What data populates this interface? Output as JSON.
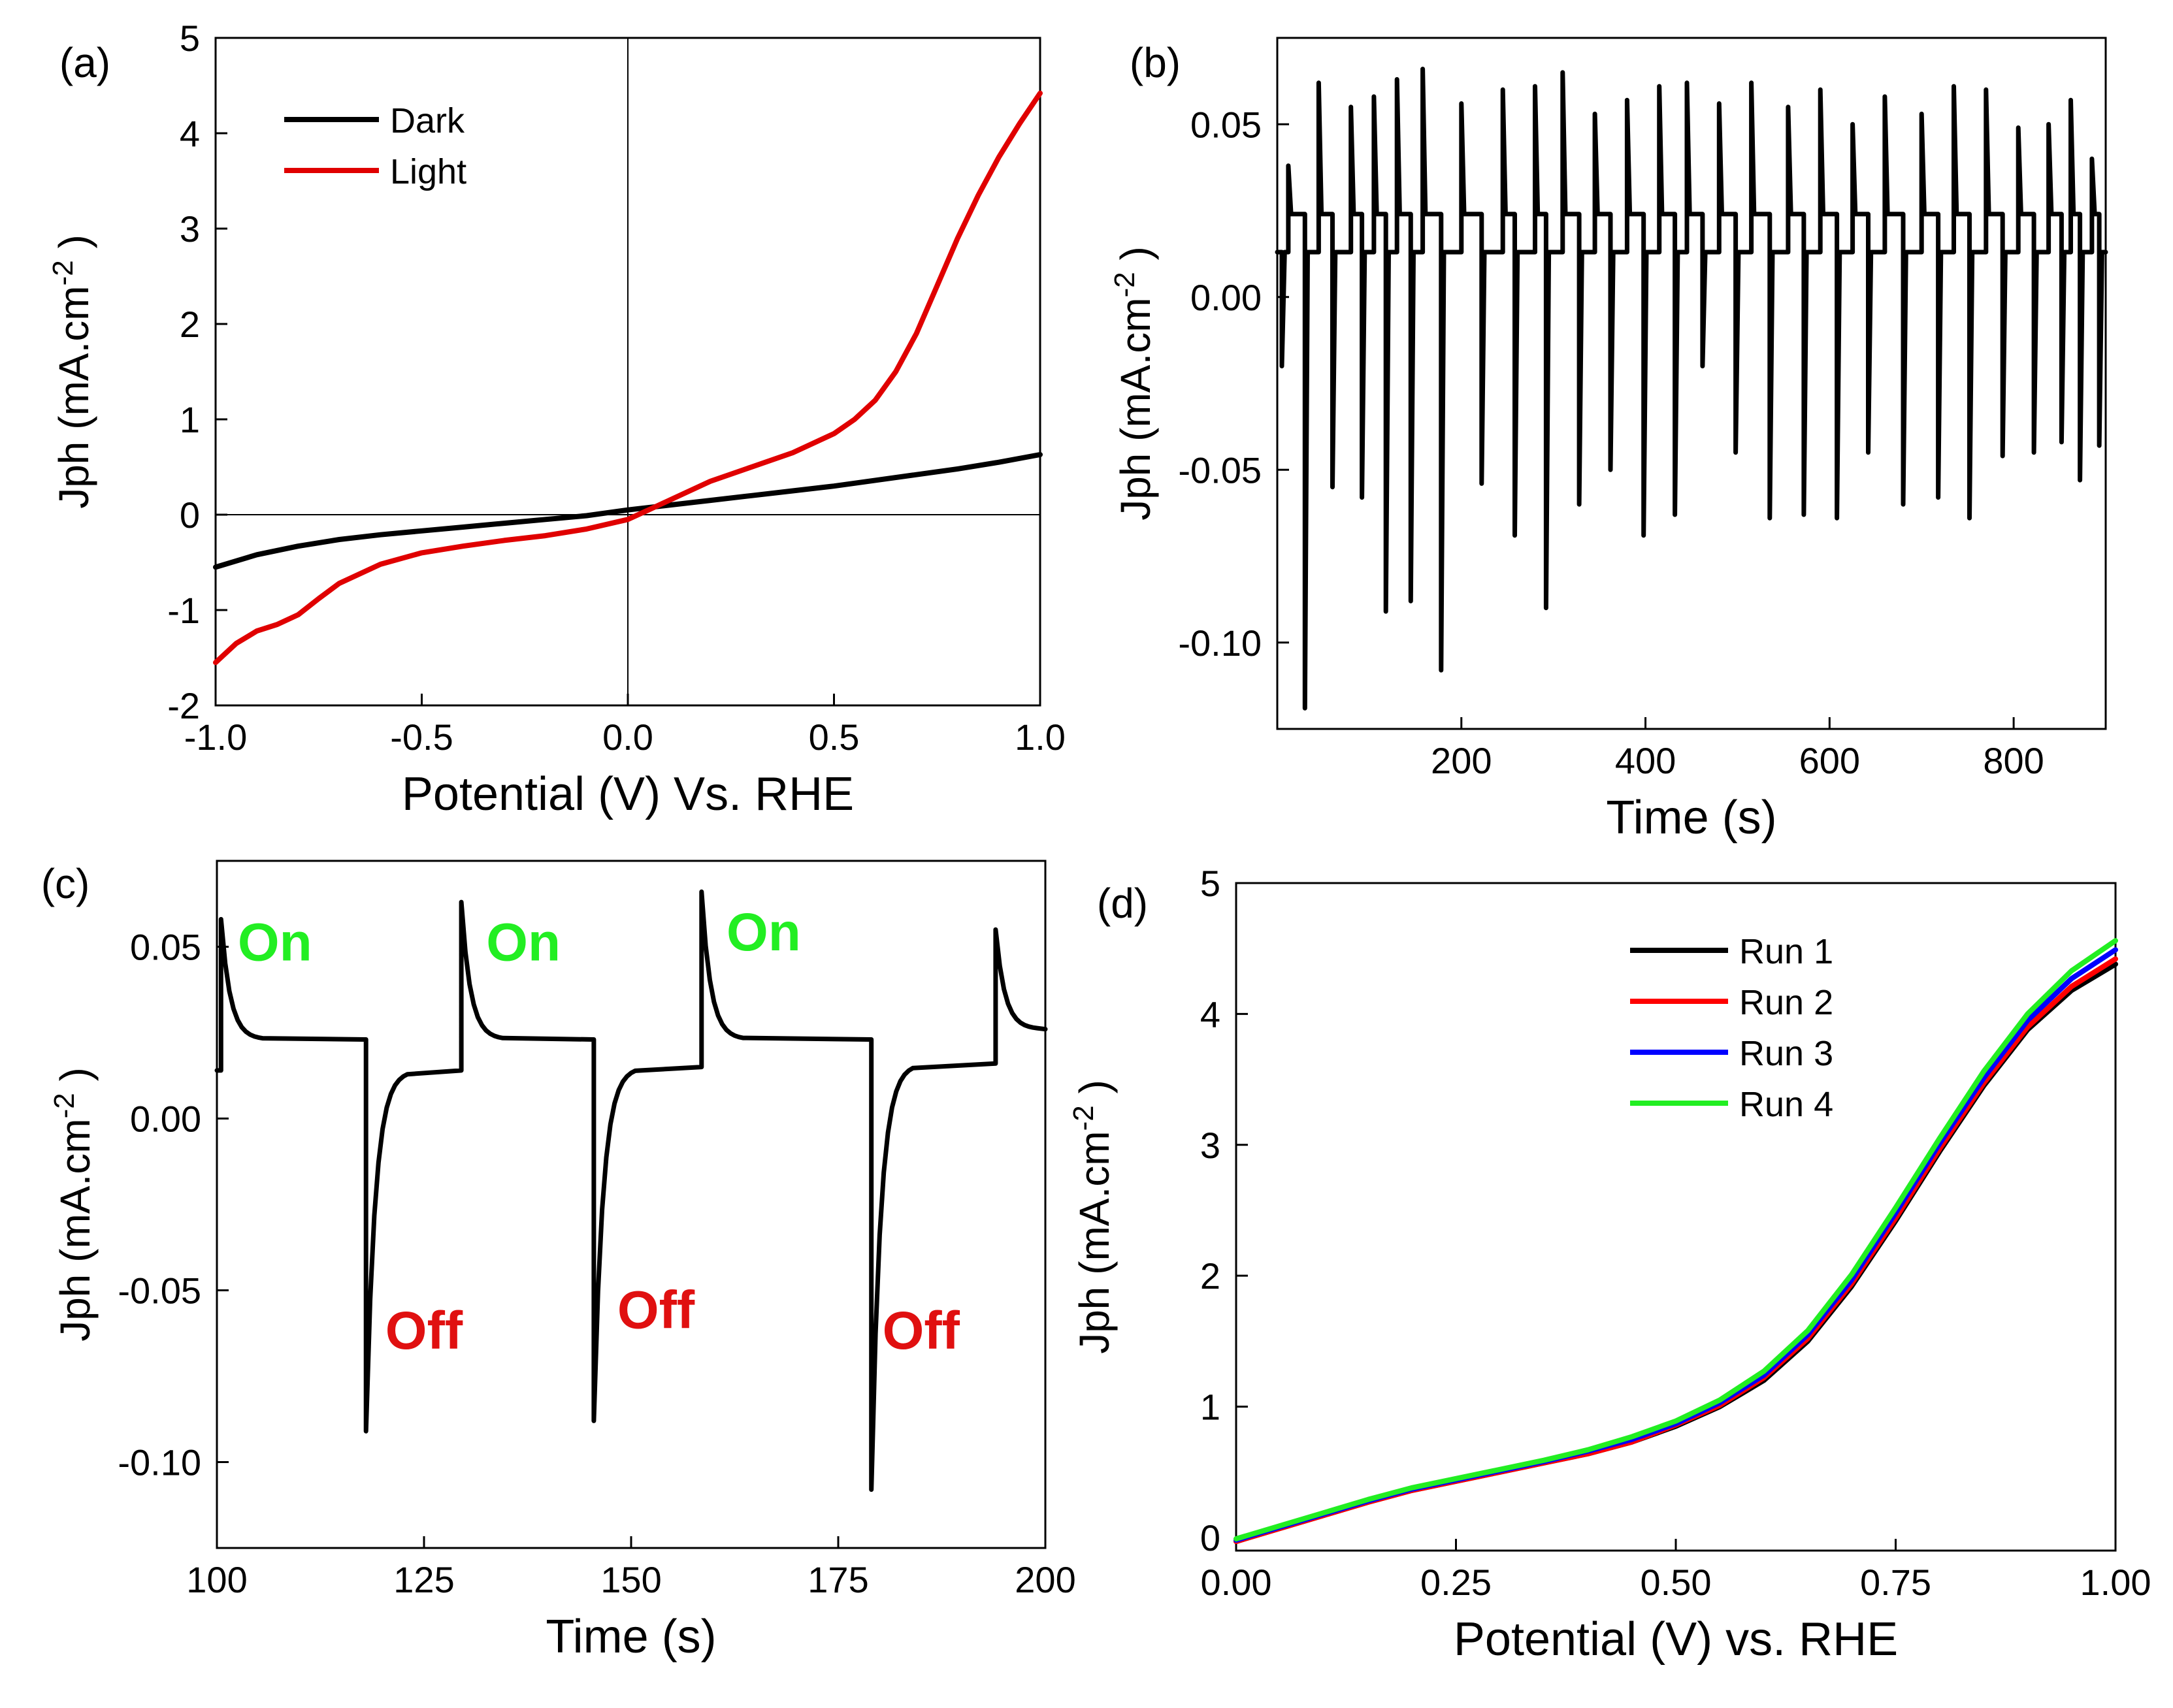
{
  "chart_data": [
    {
      "panel": "(a)",
      "type": "line",
      "title": "",
      "xlabel": "Potential (V) Vs. RHE",
      "ylabel": "Jph (mA.cm",
      "ylabel_sup": "-2",
      "ylabel_close": ")",
      "xlim": [
        -1.0,
        1.0
      ],
      "ylim": [
        -2,
        5
      ],
      "xticks": [
        -1.0,
        -0.5,
        0.0,
        0.5,
        1.0
      ],
      "xtick_labels": [
        "-1.0",
        "-0.5",
        "0.0",
        "0.5",
        "1.0"
      ],
      "yticks": [
        -2,
        -1,
        0,
        1,
        2,
        3,
        4,
        5
      ],
      "ytick_labels": [
        "-2",
        "-1",
        "0",
        "1",
        "2",
        "3",
        "4",
        "5"
      ],
      "legend": "top-left",
      "series": [
        {
          "name": "Dark",
          "color": "#000000",
          "x": [
            -1.0,
            -0.9,
            -0.8,
            -0.7,
            -0.6,
            -0.5,
            -0.4,
            -0.3,
            -0.2,
            -0.1,
            0.0,
            0.1,
            0.2,
            0.3,
            0.4,
            0.5,
            0.6,
            0.7,
            0.8,
            0.9,
            1.0
          ],
          "y": [
            -0.55,
            -0.42,
            -0.33,
            -0.26,
            -0.21,
            -0.17,
            -0.13,
            -0.09,
            -0.05,
            -0.01,
            0.05,
            0.1,
            0.15,
            0.2,
            0.25,
            0.3,
            0.36,
            0.42,
            0.48,
            0.55,
            0.63
          ]
        },
        {
          "name": "Light",
          "color": "#e00000",
          "x": [
            -1.0,
            -0.95,
            -0.9,
            -0.85,
            -0.8,
            -0.75,
            -0.7,
            -0.6,
            -0.5,
            -0.4,
            -0.3,
            -0.2,
            -0.1,
            0.0,
            0.05,
            0.1,
            0.2,
            0.3,
            0.4,
            0.5,
            0.55,
            0.6,
            0.65,
            0.7,
            0.75,
            0.8,
            0.85,
            0.9,
            0.95,
            1.0
          ],
          "y": [
            -1.55,
            -1.35,
            -1.22,
            -1.15,
            -1.05,
            -0.88,
            -0.72,
            -0.52,
            -0.4,
            -0.33,
            -0.27,
            -0.22,
            -0.15,
            -0.05,
            0.05,
            0.15,
            0.35,
            0.5,
            0.65,
            0.85,
            1.0,
            1.2,
            1.5,
            1.9,
            2.4,
            2.9,
            3.35,
            3.75,
            4.1,
            4.42
          ]
        }
      ]
    },
    {
      "panel": "(b)",
      "type": "line",
      "title": "",
      "xlabel": "Time (s)",
      "ylabel": "Jph (mA.cm",
      "ylabel_sup": "-2",
      "ylabel_close": ")",
      "xlim": [
        0,
        900
      ],
      "ylim": [
        -0.125,
        0.075
      ],
      "xticks": [
        200,
        400,
        600,
        800
      ],
      "xtick_labels": [
        "200",
        "400",
        "600",
        "800"
      ],
      "yticks": [
        -0.1,
        -0.05,
        0.0,
        0.05
      ],
      "ytick_labels": [
        "-0.10",
        "-0.05",
        "0.00",
        "0.05"
      ],
      "on_level": 0.024,
      "off_level": 0.013,
      "spikes_on": [
        {
          "t": 12,
          "peak": 0.038
        },
        {
          "t": 45,
          "peak": 0.062
        },
        {
          "t": 80,
          "peak": 0.055
        },
        {
          "t": 105,
          "peak": 0.058
        },
        {
          "t": 130,
          "peak": 0.063
        },
        {
          "t": 158,
          "peak": 0.066
        },
        {
          "t": 200,
          "peak": 0.056
        },
        {
          "t": 245,
          "peak": 0.06
        },
        {
          "t": 280,
          "peak": 0.061
        },
        {
          "t": 310,
          "peak": 0.065
        },
        {
          "t": 345,
          "peak": 0.053
        },
        {
          "t": 380,
          "peak": 0.057
        },
        {
          "t": 415,
          "peak": 0.061
        },
        {
          "t": 445,
          "peak": 0.062
        },
        {
          "t": 480,
          "peak": 0.056
        },
        {
          "t": 515,
          "peak": 0.062
        },
        {
          "t": 555,
          "peak": 0.055
        },
        {
          "t": 590,
          "peak": 0.06
        },
        {
          "t": 625,
          "peak": 0.05
        },
        {
          "t": 660,
          "peak": 0.058
        },
        {
          "t": 700,
          "peak": 0.053
        },
        {
          "t": 735,
          "peak": 0.061
        },
        {
          "t": 770,
          "peak": 0.06
        },
        {
          "t": 805,
          "peak": 0.049
        },
        {
          "t": 838,
          "peak": 0.05
        },
        {
          "t": 862,
          "peak": 0.057
        },
        {
          "t": 885,
          "peak": 0.04
        }
      ],
      "spikes_off": [
        {
          "t": 5,
          "dip": -0.02
        },
        {
          "t": 30,
          "dip": -0.119
        },
        {
          "t": 60,
          "dip": -0.055
        },
        {
          "t": 92,
          "dip": -0.058
        },
        {
          "t": 118,
          "dip": -0.091
        },
        {
          "t": 145,
          "dip": -0.088
        },
        {
          "t": 178,
          "dip": -0.108
        },
        {
          "t": 222,
          "dip": -0.054
        },
        {
          "t": 258,
          "dip": -0.069
        },
        {
          "t": 292,
          "dip": -0.09
        },
        {
          "t": 328,
          "dip": -0.06
        },
        {
          "t": 362,
          "dip": -0.05
        },
        {
          "t": 398,
          "dip": -0.069
        },
        {
          "t": 432,
          "dip": -0.063
        },
        {
          "t": 462,
          "dip": -0.02
        },
        {
          "t": 498,
          "dip": -0.045
        },
        {
          "t": 535,
          "dip": -0.064
        },
        {
          "t": 572,
          "dip": -0.063
        },
        {
          "t": 608,
          "dip": -0.064
        },
        {
          "t": 642,
          "dip": -0.045
        },
        {
          "t": 680,
          "dip": -0.06
        },
        {
          "t": 718,
          "dip": -0.058
        },
        {
          "t": 752,
          "dip": -0.064
        },
        {
          "t": 788,
          "dip": -0.046
        },
        {
          "t": 822,
          "dip": -0.045
        },
        {
          "t": 852,
          "dip": -0.042
        },
        {
          "t": 872,
          "dip": -0.053
        },
        {
          "t": 893,
          "dip": -0.043
        }
      ]
    },
    {
      "panel": "(c)",
      "type": "line",
      "title": "",
      "xlabel": "Time (s)",
      "ylabel": "Jph (mA.cm",
      "ylabel_sup": "-2",
      "ylabel_close": ")",
      "xlim": [
        100,
        200
      ],
      "ylim": [
        -0.125,
        0.075
      ],
      "xticks": [
        100,
        125,
        150,
        175,
        200
      ],
      "xtick_labels": [
        "100",
        "125",
        "150",
        "175",
        "200"
      ],
      "yticks": [
        -0.1,
        -0.05,
        0.0,
        0.05
      ],
      "ytick_labels": [
        "-0.10",
        "-0.05",
        "0.00",
        "0.05"
      ],
      "on_events": [
        {
          "t": 100.5,
          "peak": 0.058,
          "plateau": 0.023
        },
        {
          "t": 129.5,
          "peak": 0.063,
          "plateau": 0.023
        },
        {
          "t": 158.5,
          "peak": 0.066,
          "plateau": 0.023
        },
        {
          "t": 194,
          "peak": 0.055,
          "plateau": 0.026
        }
      ],
      "off_events": [
        {
          "t": 118,
          "dip": -0.091,
          "plateau": 0.014
        },
        {
          "t": 145.5,
          "dip": -0.088,
          "plateau": 0.015
        },
        {
          "t": 179,
          "dip": -0.108,
          "plateau": 0.016
        }
      ],
      "annotations": [
        {
          "text": "On",
          "x": 107,
          "y": 0.046,
          "color": "#22ee22"
        },
        {
          "text": "On",
          "x": 137,
          "y": 0.046,
          "color": "#22ee22"
        },
        {
          "text": "On",
          "x": 166,
          "y": 0.049,
          "color": "#22ee22"
        },
        {
          "text": "Off",
          "x": 125,
          "y": -0.067,
          "color": "#e01010"
        },
        {
          "text": "Off",
          "x": 153,
          "y": -0.061,
          "color": "#e01010"
        },
        {
          "text": "Off",
          "x": 185,
          "y": -0.067,
          "color": "#e01010"
        }
      ]
    },
    {
      "panel": "(d)",
      "type": "line",
      "title": "",
      "xlabel": "Potential (V) vs. RHE",
      "ylabel": "Jph (mA.cm",
      "ylabel_sup": "-2",
      "ylabel_close": ")",
      "xlim": [
        0.0,
        1.0
      ],
      "ylim": [
        -0.1,
        5
      ],
      "xticks": [
        0.0,
        0.25,
        0.5,
        0.75,
        1.0
      ],
      "xtick_labels": [
        "0.00",
        "0.25",
        "0.50",
        "0.75",
        "1.00"
      ],
      "yticks": [
        0,
        1,
        2,
        3,
        4,
        5
      ],
      "ytick_labels": [
        "0",
        "1",
        "2",
        "3",
        "4",
        "5"
      ],
      "legend": "top-center",
      "x": [
        0.0,
        0.05,
        0.1,
        0.15,
        0.2,
        0.25,
        0.3,
        0.35,
        0.4,
        0.45,
        0.5,
        0.55,
        0.6,
        0.65,
        0.7,
        0.75,
        0.8,
        0.85,
        0.9,
        0.95,
        1.0
      ],
      "series": [
        {
          "name": "Run 1",
          "color": "#000000",
          "y": [
            -0.03,
            0.07,
            0.17,
            0.27,
            0.36,
            0.43,
            0.5,
            0.57,
            0.64,
            0.73,
            0.85,
            1.0,
            1.2,
            1.5,
            1.92,
            2.42,
            2.95,
            3.45,
            3.88,
            4.18,
            4.38
          ]
        },
        {
          "name": "Run 2",
          "color": "#ff0000",
          "y": [
            -0.03,
            0.07,
            0.17,
            0.27,
            0.36,
            0.43,
            0.5,
            0.57,
            0.64,
            0.73,
            0.86,
            1.01,
            1.22,
            1.52,
            1.94,
            2.44,
            2.97,
            3.47,
            3.9,
            4.21,
            4.42
          ]
        },
        {
          "name": "Run 3",
          "color": "#0000ff",
          "y": [
            -0.02,
            0.08,
            0.18,
            0.28,
            0.37,
            0.44,
            0.51,
            0.58,
            0.66,
            0.75,
            0.87,
            1.03,
            1.24,
            1.55,
            1.97,
            2.48,
            3.01,
            3.51,
            3.95,
            4.27,
            4.49
          ]
        },
        {
          "name": "Run 4",
          "color": "#22ee22",
          "y": [
            -0.01,
            0.09,
            0.19,
            0.29,
            0.38,
            0.45,
            0.52,
            0.59,
            0.67,
            0.77,
            0.89,
            1.05,
            1.27,
            1.58,
            2.01,
            2.52,
            3.05,
            3.56,
            4.0,
            4.33,
            4.56
          ]
        }
      ]
    }
  ]
}
